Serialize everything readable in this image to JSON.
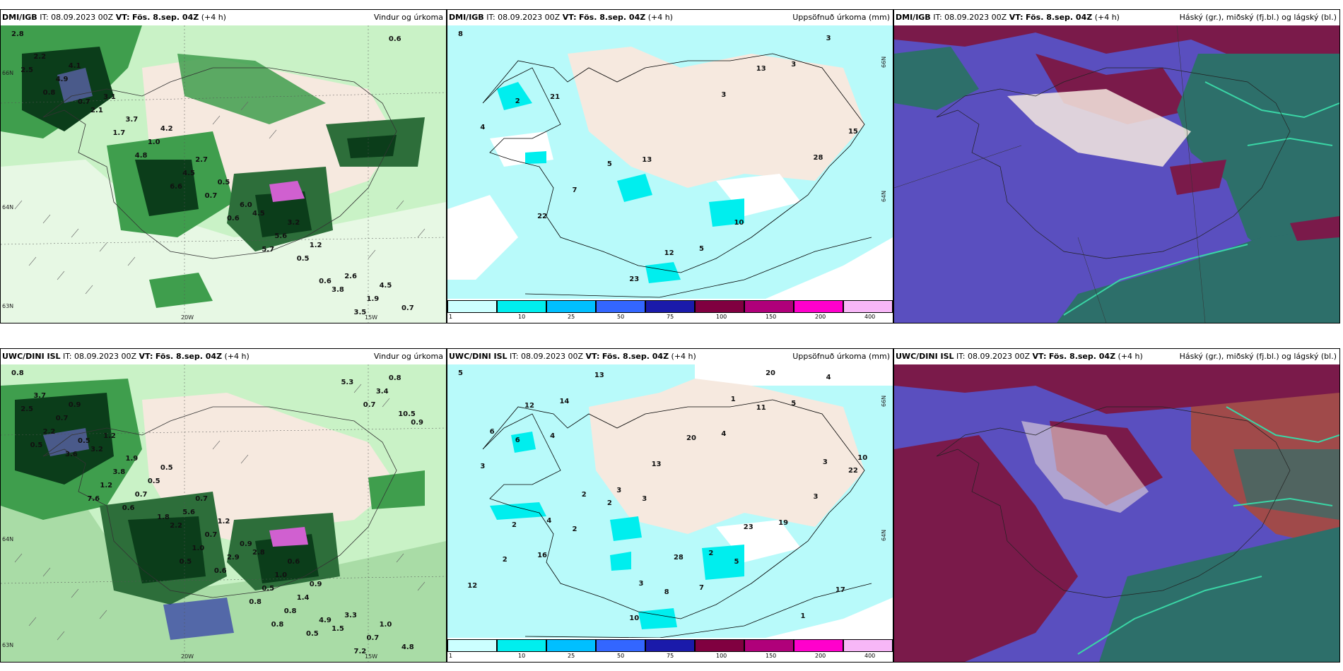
{
  "panels": [
    {
      "model": "DMI/IGB",
      "it_label": "IT:",
      "it_value": "08.09.2023 00Z",
      "vt_label": "VT:",
      "vt_value": "Fös. 8.sep. 04Z",
      "lead": "(+4 h)",
      "product": "Vindur og úrkoma",
      "values": [
        "2.8",
        "3.1",
        "2.7",
        "3.2",
        "4.5",
        "4.1",
        "4.2",
        "4.5",
        "2.6",
        "2.2",
        "3.7",
        "0.5",
        "1.2",
        "0.7",
        "2.1",
        "4.5",
        "5.6",
        "1.9",
        "4.9",
        "1.0",
        "6.0",
        "3.8",
        "2.5",
        "1.7",
        "0.7",
        "0.5",
        "0.6",
        "0.7",
        "6.6",
        "5.7",
        "3.5",
        "0.8",
        "4.8",
        "0.6",
        "0.6"
      ],
      "axis": {
        "lon1": "20W",
        "lon2": "15W",
        "lat1": "66N",
        "lat2": "64N",
        "lat3": "63N"
      }
    },
    {
      "model": "DMI/IGB",
      "it_label": "IT:",
      "it_value": "08.09.2023 00Z",
      "vt_label": "VT:",
      "vt_value": "Fös. 8.sep. 04Z",
      "lead": "(+4 h)",
      "product": "Uppsöfnuð úrkoma (mm)",
      "values": [
        "8",
        "21",
        "13",
        "10",
        "3",
        "2",
        "5",
        "5",
        "3",
        "4",
        "7",
        "12",
        "13",
        "15",
        "22",
        "23",
        "3",
        "28"
      ],
      "axis": {
        "lat1": "66N",
        "lat2": "64N"
      }
    },
    {
      "model": "DMI/IGB",
      "it_label": "IT:",
      "it_value": "08.09.2023 00Z",
      "vt_label": "VT:",
      "vt_value": "Fös. 8.sep. 04Z",
      "lead": "(+4 h)",
      "product": "Háský (gr.), miðský (fj.bl.) og lágský (bl.)"
    },
    {
      "model": "UWC/DINI ISL",
      "it_label": "IT:",
      "it_value": "08.09.2023 00Z",
      "vt_label": "VT:",
      "vt_value": "Fös. 8.sep. 04Z",
      "lead": "(+4 h)",
      "product": "Vindur og úrkoma",
      "values": [
        "0.8",
        "1.2",
        "0.7",
        "0.6",
        "1.0",
        "0.9",
        "0.5",
        "2.8",
        "3.3",
        "3.7",
        "1.9",
        "1.2",
        "0.9",
        "4.8",
        "3.2",
        "5.6",
        "1.0",
        "0.7",
        "0.7",
        "0.5",
        "0.9",
        "1.5",
        "2.5",
        "3.8",
        "0.7",
        "1.4",
        "0.8",
        "0.5",
        "2.2",
        "0.5",
        "7.2",
        "2.2",
        "0.7",
        "2.9",
        "4.9",
        "0.9",
        "1.2",
        "1.0",
        "0.8",
        "3.4",
        "3.6",
        "1.8",
        "0.8",
        "5.3",
        "0.5",
        "0.6",
        "0.6",
        "0.5",
        "10.5",
        "7.6",
        "0.5",
        "0.8",
        "0.7"
      ],
      "axis": {
        "lon1": "20W",
        "lon2": "15W",
        "lat1": "64N",
        "lat2": "63N"
      }
    },
    {
      "model": "UWC/DINI ISL",
      "it_label": "IT:",
      "it_value": "08.09.2023 00Z",
      "vt_label": "VT:",
      "vt_value": "Fös. 8.sep. 04Z",
      "lead": "(+4 h)",
      "product": "Uppsöfnuð úrkoma (mm)",
      "values": [
        "5",
        "4",
        "3",
        "5",
        "4",
        "6",
        "2",
        "7",
        "5",
        "3",
        "2",
        "8",
        "11",
        "22",
        "16",
        "10",
        "4",
        "3",
        "2",
        "13",
        "20",
        "19",
        "12",
        "14",
        "13",
        "23",
        "17",
        "12",
        "3",
        "2",
        "1",
        "6",
        "2",
        "28",
        "20",
        "10",
        "4",
        "3",
        "1",
        "3",
        "2"
      ],
      "axis": {
        "lat1": "66N",
        "lat2": "64N"
      }
    },
    {
      "model": "UWC/DINI ISL",
      "it_label": "IT:",
      "it_value": "08.09.2023 00Z",
      "vt_label": "VT:",
      "vt_value": "Fös. 8.sep. 04Z",
      "lead": "(+4 h)",
      "product": "Háský (gr.), miðský (fj.bl.) og lágský (bl.)"
    }
  ],
  "colorbar": {
    "labels": [
      "1",
      "10",
      "25",
      "50",
      "75",
      "100",
      "150",
      "200",
      "400"
    ],
    "colors": [
      "#ccffff",
      "#00eeee",
      "#00bfff",
      "#3366ff",
      "#1a1aaa",
      "#800040",
      "#b0007a",
      "#ff00cc",
      "#f7b7f7"
    ]
  },
  "colors": {
    "land": "#f6e9df",
    "precip_light": "#c9f2c6",
    "precip_mid": "#3f9e4d",
    "precip_dark": "#0b3d1a",
    "accum_sea": "#b8fafa",
    "cloud_high": "#2d6f6a",
    "cloud_mid": "#5a4fbf",
    "cloud_low": "#7a1a4a"
  }
}
